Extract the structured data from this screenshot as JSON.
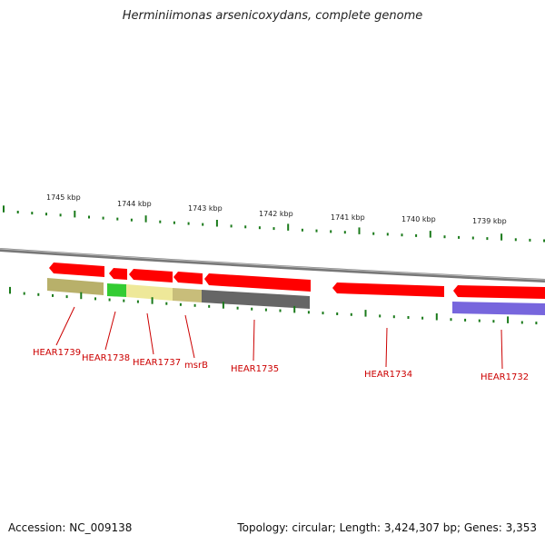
{
  "title": "Herminiimonas arsenicoxydans, complete genome",
  "footer": {
    "accession": "Accession: NC_009138",
    "topology": "Topology: circular; Length: 3,424,307 bp; Genes: 3,353"
  },
  "colors": {
    "forward_strand_gene": "#ff0000",
    "backbone": "#888888",
    "tick": "#1a7a1a",
    "label": "#cc0000",
    "category_olive": "#b8b06a",
    "category_green": "#33cc33",
    "category_yellow": "#eee899",
    "category_dark_grey": "#666666",
    "category_blue": "#7766dd"
  },
  "scale_labels": [
    "1745 kbp",
    "1744 kbp",
    "1743 kbp",
    "1742 kbp",
    "1741 kbp",
    "1740 kbp",
    "1739 kbp"
  ],
  "gene_labels": [
    "HEAR1739",
    "HEAR1738",
    "HEAR1737",
    "msrB",
    "HEAR1735",
    "HEAR1734",
    "HEAR1732"
  ]
}
